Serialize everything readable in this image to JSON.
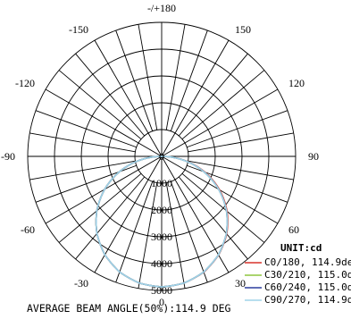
{
  "chart_data": {
    "type": "polar",
    "unit_label": "UNIT:cd",
    "footer": "AVERAGE BEAM ANGLE(50%):114.9 DEG",
    "angle_labels": [
      {
        "deg": 180,
        "text": "-/+180"
      },
      {
        "deg": 150,
        "text": "150"
      },
      {
        "deg": -150,
        "text": "-150"
      },
      {
        "deg": 120,
        "text": "120"
      },
      {
        "deg": -120,
        "text": "-120"
      },
      {
        "deg": 90,
        "text": "90"
      },
      {
        "deg": -90,
        "text": "-90"
      },
      {
        "deg": 60,
        "text": "60"
      },
      {
        "deg": -60,
        "text": "-60"
      },
      {
        "deg": 30,
        "text": "30"
      },
      {
        "deg": -30,
        "text": "-30"
      },
      {
        "deg": 0,
        "text": "0"
      }
    ],
    "radial_ticks": [
      "0",
      "1000",
      "2000",
      "3000",
      "4000",
      "5000"
    ],
    "radial_values": [
      0,
      1000,
      2000,
      3000,
      4000,
      5000
    ],
    "rmax": 5000,
    "grid": true,
    "legend_placement": "bottom-right",
    "series": [
      {
        "name": "C0/180, 114.9deg",
        "color": "#d9342b",
        "angles": [
          -90,
          -80,
          -70,
          -60,
          -50,
          -40,
          -30,
          -20,
          -10,
          0,
          10,
          20,
          30,
          40,
          50,
          60,
          70,
          80,
          90
        ],
        "values": [
          0,
          850,
          1680,
          2460,
          3160,
          3760,
          4240,
          4590,
          4800,
          4870,
          4800,
          4600,
          4250,
          3780,
          3190,
          2500,
          1720,
          880,
          0
        ]
      },
      {
        "name": "C30/210, 115.0deg",
        "color": "#8dc63f",
        "angles": [
          -90,
          -80,
          -70,
          -60,
          -50,
          -40,
          -30,
          -20,
          -10,
          0,
          10,
          20,
          30,
          40,
          50,
          60,
          70,
          80,
          90
        ],
        "values": [
          0,
          850,
          1680,
          2460,
          3160,
          3760,
          4240,
          4590,
          4800,
          4870,
          4800,
          4590,
          4240,
          3760,
          3160,
          2460,
          1680,
          850,
          0
        ]
      },
      {
        "name": "C60/240, 115.0deg",
        "color": "#2b3d9e",
        "angles": [
          -90,
          -80,
          -70,
          -60,
          -50,
          -40,
          -30,
          -20,
          -10,
          0,
          10,
          20,
          30,
          40,
          50,
          60,
          70,
          80,
          90
        ],
        "values": [
          0,
          850,
          1680,
          2460,
          3160,
          3760,
          4240,
          4590,
          4800,
          4870,
          4800,
          4590,
          4240,
          3760,
          3160,
          2460,
          1680,
          850,
          0
        ]
      },
      {
        "name": "C90/270, 114.9deg",
        "color": "#9fd3e8",
        "angles": [
          -90,
          -80,
          -70,
          -60,
          -50,
          -40,
          -30,
          -20,
          -10,
          0,
          10,
          20,
          30,
          40,
          50,
          60,
          70,
          80,
          90
        ],
        "values": [
          0,
          850,
          1680,
          2460,
          3160,
          3760,
          4240,
          4590,
          4800,
          4870,
          4800,
          4590,
          4240,
          3760,
          3160,
          2460,
          1680,
          850,
          0
        ]
      }
    ]
  }
}
